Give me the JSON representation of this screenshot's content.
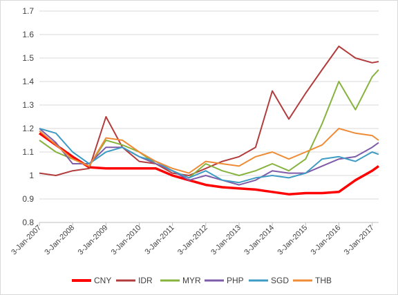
{
  "chart_data": {
    "type": "line",
    "title": "",
    "xlabel": "",
    "ylabel": "",
    "x_dates": [
      "2007-01-03",
      "2007-07-03",
      "2008-01-03",
      "2008-07-03",
      "2009-01-03",
      "2009-07-03",
      "2010-01-03",
      "2010-07-03",
      "2011-01-03",
      "2011-07-03",
      "2012-01-03",
      "2012-07-03",
      "2013-01-03",
      "2013-07-03",
      "2014-01-03",
      "2014-07-03",
      "2015-01-03",
      "2015-07-03",
      "2016-01-03",
      "2016-07-03",
      "2017-01-03",
      "2017-03-15"
    ],
    "x_ticks": [
      "3-Jan-2007",
      "3-Jan-2008",
      "3-Jan-2009",
      "3-Jan-2010",
      "3-Jan-2011",
      "3-Jan-2012",
      "3-Jan-2013",
      "3-Jan-2014",
      "3-Jan-2015",
      "3-Jan-2016",
      "3-Jan-2017"
    ],
    "y_ticks": [
      "0.8",
      "0.9",
      "1",
      "1.1",
      "1.2",
      "1.3",
      "1.4",
      "1.5",
      "1.6",
      "1.7"
    ],
    "ylim": [
      0.8,
      1.7
    ],
    "grid": true,
    "legend_position": "bottom",
    "series": [
      {
        "name": "CNY",
        "color": "#ff0000",
        "values": [
          1.18,
          1.13,
          1.08,
          1.035,
          1.03,
          1.03,
          1.03,
          1.03,
          1.0,
          0.98,
          0.96,
          0.95,
          0.945,
          0.94,
          0.93,
          0.92,
          0.925,
          0.925,
          0.93,
          0.98,
          1.02,
          1.04
        ]
      },
      {
        "name": "IDR",
        "color": "#b23b3b",
        "values": [
          1.01,
          1.0,
          1.02,
          1.03,
          1.25,
          1.12,
          1.06,
          1.05,
          1.01,
          1.0,
          1.03,
          1.06,
          1.08,
          1.12,
          1.36,
          1.24,
          1.35,
          1.45,
          1.55,
          1.5,
          1.48,
          1.485
        ]
      },
      {
        "name": "MYR",
        "color": "#86b33d",
        "values": [
          1.15,
          1.1,
          1.07,
          1.04,
          1.15,
          1.13,
          1.1,
          1.05,
          1.02,
          0.99,
          1.05,
          1.02,
          1.0,
          1.02,
          1.05,
          1.02,
          1.07,
          1.22,
          1.4,
          1.28,
          1.42,
          1.45
        ]
      },
      {
        "name": "PHP",
        "color": "#7e5ba8",
        "values": [
          1.2,
          1.14,
          1.05,
          1.05,
          1.12,
          1.12,
          1.08,
          1.05,
          1.02,
          0.98,
          1.0,
          0.98,
          0.96,
          0.98,
          1.02,
          1.01,
          1.01,
          1.04,
          1.07,
          1.08,
          1.12,
          1.14
        ]
      },
      {
        "name": "SGD",
        "color": "#3e9bc4",
        "values": [
          1.2,
          1.18,
          1.1,
          1.05,
          1.1,
          1.12,
          1.08,
          1.06,
          1.02,
          0.99,
          1.02,
          0.98,
          0.97,
          0.99,
          1.0,
          0.99,
          1.01,
          1.07,
          1.08,
          1.06,
          1.1,
          1.09
        ]
      },
      {
        "name": "THB",
        "color": "#ef8b35",
        "values": [
          1.19,
          1.13,
          1.07,
          1.04,
          1.16,
          1.15,
          1.1,
          1.06,
          1.03,
          1.01,
          1.06,
          1.05,
          1.04,
          1.08,
          1.1,
          1.07,
          1.1,
          1.13,
          1.2,
          1.18,
          1.17,
          1.15
        ]
      }
    ]
  }
}
